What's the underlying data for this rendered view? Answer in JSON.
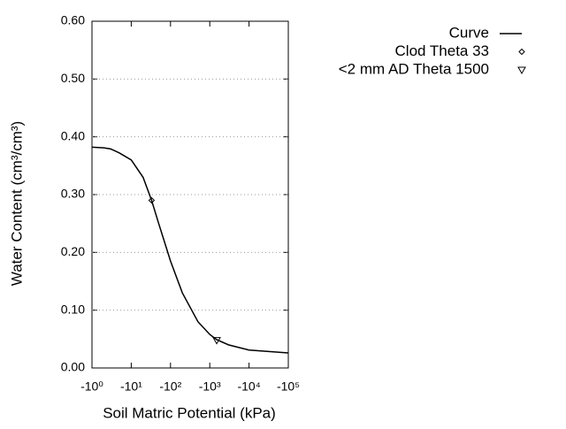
{
  "chart_data": {
    "type": "line",
    "x_label": "Soil Matric Potential (kPa)",
    "y_label": "Water Content (cm³/cm³)",
    "xscale": "log",
    "xlim": [
      -1,
      -100000
    ],
    "xticks": [
      {
        "value": -1,
        "label": "-10⁰"
      },
      {
        "value": -10,
        "label": "-10¹"
      },
      {
        "value": -100,
        "label": "-10²"
      },
      {
        "value": -1000,
        "label": "-10³"
      },
      {
        "value": -10000,
        "label": "-10⁴"
      },
      {
        "value": -100000,
        "label": "-10⁵"
      }
    ],
    "ylim": [
      0,
      0.6
    ],
    "yticks": [
      {
        "value": 0,
        "label": "0.00"
      },
      {
        "value": 0.1,
        "label": "0.10"
      },
      {
        "value": 0.2,
        "label": "0.20"
      },
      {
        "value": 0.3,
        "label": "0.30"
      },
      {
        "value": 0.4,
        "label": "0.40"
      },
      {
        "value": 0.5,
        "label": "0.50"
      },
      {
        "value": 0.6,
        "label": "0.60"
      }
    ],
    "grid": true,
    "legend": "top-right",
    "series": [
      {
        "name": "Curve",
        "color": "#000000",
        "style": "line",
        "x": [
          -1,
          -2,
          -3,
          -5,
          -10,
          -20,
          -33,
          -50,
          -100,
          -200,
          -500,
          -1000,
          -1500,
          -3000,
          -10000,
          -100000
        ],
        "values": [
          0.382,
          0.381,
          0.379,
          0.372,
          0.36,
          0.33,
          0.29,
          0.25,
          0.185,
          0.13,
          0.08,
          0.058,
          0.049,
          0.04,
          0.031,
          0.026
        ]
      },
      {
        "name": "Clod Theta 33",
        "color": "#000000",
        "style": "diamond",
        "x": [
          -33
        ],
        "values": [
          0.29
        ]
      },
      {
        "name": "<2 mm AD Theta 1500",
        "color": "#000000",
        "style": "triangle-down",
        "x": [
          -1500
        ],
        "values": [
          0.048
        ]
      }
    ]
  }
}
